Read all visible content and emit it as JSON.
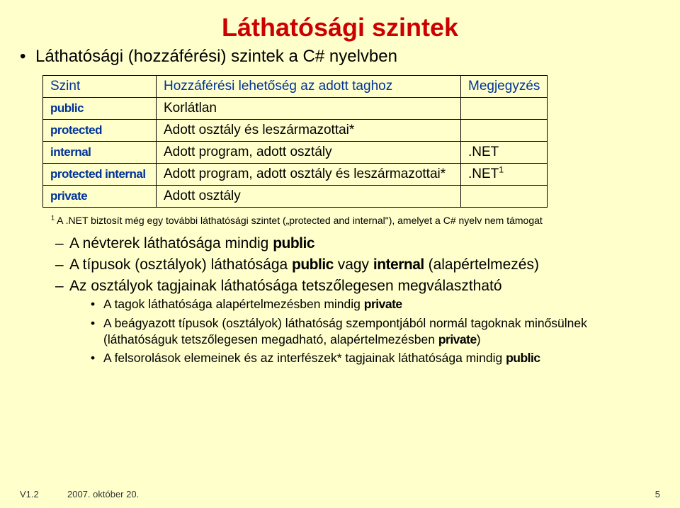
{
  "title": "Láthatósági szintek",
  "main_bullet": "Láthatósági (hozzáférési) szintek a C# nyelvben",
  "table": {
    "header": {
      "c0": "Szint",
      "c1": "Hozzáférési lehetőség az adott taghoz",
      "c2": "Megjegyzés"
    },
    "rows": [
      {
        "c0": "public",
        "c1": "Korlátlan",
        "c2": ""
      },
      {
        "c0": "protected",
        "c1": "Adott osztály és leszármazottai*",
        "c2": ""
      },
      {
        "c0": "internal",
        "c1": "Adott program, adott osztály",
        "c2": ".NET"
      },
      {
        "c0": "protected internal",
        "c1": "Adott program, adott osztály és leszármazottai*",
        "c2": ".NET",
        "c2sup": "1"
      },
      {
        "c0": "private",
        "c1": "Adott osztály",
        "c2": ""
      }
    ],
    "col_widths": [
      "160px",
      "430px",
      "120px"
    ]
  },
  "footnote": {
    "sup": "1",
    "text": " A .NET biztosít még egy további láthatósági szintet („protected and internal\"), amelyet a C# nyelv nem támogat"
  },
  "subs": {
    "s1a": "A névterek láthatósága mindig ",
    "s1kw": "public",
    "s2a": "A típusok (osztályok) láthatósága ",
    "s2kw1": "public",
    "s2b": " vagy ",
    "s2kw2": "internal",
    "s2c": " (alapértelmezés)",
    "s3": "Az osztályok tagjainak láthatósága tetszőlegesen megválasztható",
    "s4a": "A tagok láthatósága alapértelmezésben mindig ",
    "s4kw": "private",
    "s5a": "A beágyazott típusok (osztályok) láthatóság szempontjából normál tagoknak minősülnek (láthatóságuk tetszőlegesen megadható, alapértelmezésben ",
    "s5kw": "private",
    "s5b": ")",
    "s6a": "A felsorolások elemeinek és az interfészek* tagjainak láthatósága mindig ",
    "s6kw": "public"
  },
  "footer": {
    "left": "V1.2",
    "date": "2007. október 20.",
    "page": "5"
  },
  "colors": {
    "background": "#ffffcc",
    "title": "#cc0000",
    "header_text": "#003399",
    "keyword": "#003399",
    "border": "#000000",
    "body": "#000000"
  },
  "fonts": {
    "body_family": "Verdana",
    "title_size_pt": 28,
    "main_bullet_size_pt": 18,
    "table_size_pt": 14,
    "footnote_size_pt": 10,
    "sub_size_pt": 16,
    "sub2_size_pt": 13,
    "footer_size_pt": 10
  }
}
